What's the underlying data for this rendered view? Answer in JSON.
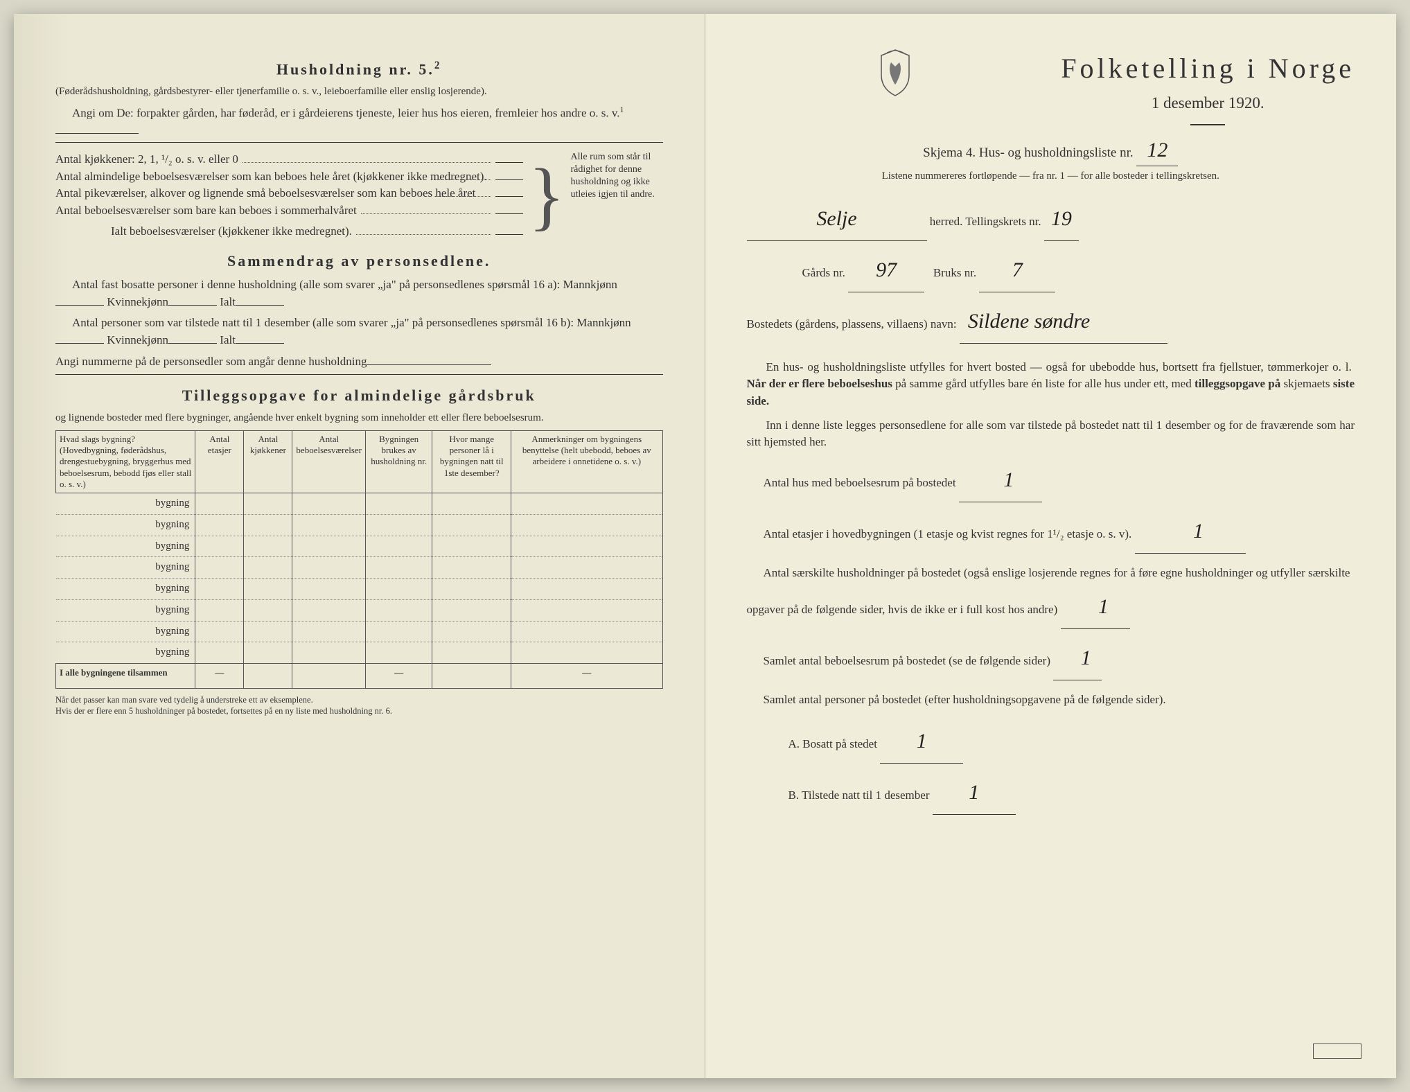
{
  "left": {
    "h5_title": "Husholdning nr. 5.",
    "h5_sup": "2",
    "h5_sub": "(Føderådshusholdning, gårdsbestyrer- eller tjenerfamilie o. s. v., leieboerfamilie eller enslig losjerende).",
    "h5_intro": "Angi om De:  forpakter gården, har føderåd, er i gårdeierens tjeneste, leier hus hos eieren, fremleier hos andre o. s. v.",
    "h5_intro_sup": "1",
    "rooms": {
      "kjokken": "Antal kjøkkener: 2, 1, ¹/₂ o. s. v. eller 0",
      "alm": "Antal almindelige beboelsesværelser som kan beboes hele året (kjøkkener ikke medregnet).",
      "pike": "Antal pikeværelser, alkover og lignende små beboelsesværelser som kan beboes hele året",
      "sommer": "Antal beboelsesværelser som bare kan beboes i sommerhalvåret",
      "ialt": "Ialt beboelsesværelser  (kjøkkener ikke medregnet).",
      "brace_text": "Alle rum som står til rådighet for denne husholdning og ikke utleies igjen til andre."
    },
    "samm_title": "Sammendrag av personsedlene.",
    "samm_l1a": "Antal fast bosatte personer i denne husholdning (alle som svarer „ja\" på personsedlenes spørsmål 16 a): Mannkjønn",
    "samm_l1b": "Kvinnekjønn",
    "samm_l1c": "Ialt",
    "samm_l2a": "Antal personer som var tilstede natt til 1 desember (alle som svarer „ja\" på personsedlenes spørsmål 16 b): Mannkjønn",
    "samm_l3": "Angi nummerne på de personsedler som angår denne husholdning",
    "till_title": "Tilleggsopgave for almindelige gårdsbruk",
    "till_sub": "og lignende bosteder med flere bygninger, angående hver enkelt bygning som inneholder ett eller flere beboelsesrum.",
    "table": {
      "h1": "Hvad slags bygning?\n(Hovedbygning, føderådshus, drengestuebygning, bryggerhus med beboelsesrum, bebodd fjøs eller stall o. s. v.)",
      "h2": "Antal etasjer",
      "h3": "Antal kjøkkener",
      "h4": "Antal beboelsesværelser",
      "h5": "Bygningen brukes av husholdning nr.",
      "h6": "Hvor mange personer lå i bygningen natt til 1ste desember?",
      "h7": "Anmerkninger om bygningens benyttelse (helt ubebodd, beboes av arbeidere i onnetidene o. s. v.)",
      "rowlabel": "bygning",
      "totallabel": "I alle bygningene tilsammen"
    },
    "foot1": "Når det passer kan man svare ved tydelig å understreke ett av eksemplene.",
    "foot2": "Hvis der er flere enn 5 husholdninger på bostedet, fortsettes på en ny liste med husholdning nr. 6."
  },
  "right": {
    "title": "Folketelling i Norge",
    "date": "1 desember 1920.",
    "skjema": "Skjema 4.  Hus- og husholdningsliste nr.",
    "skjema_val": "12",
    "listene": "Listene nummereres fortløpende — fra nr. 1 — for alle bosteder i tellingskretsen.",
    "herred_label": "herred.   Tellingskrets nr.",
    "herred_val": "Selje",
    "krets_val": "19",
    "gard_label": "Gårds nr.",
    "gard_val": "97",
    "bruks_label": "Bruks nr.",
    "bruks_val": "7",
    "bostednavn_label": "Bostedets (gårdens, plassens, villaens) navn:",
    "bostednavn_val": "Sildene  søndre",
    "para1": "En hus- og husholdningsliste utfylles for hvert bosted — også for ubebodde hus, bortsett fra fjellstuer, tømmerkojer o. l.  Når der er flere beboelseshus på samme gård utfylles bare én liste for alle hus under ett, med tilleggsopgave på skjemaets siste side.",
    "para2": "Inn i denne liste legges personsedlene for alle som var tilstede på bostedet natt til 1 desember og for de fraværende som har sitt hjemsted her.",
    "q1": "Antal hus med beboelsesrum på bostedet",
    "q1_val": "1",
    "q2a": "Antal etasjer i hovedbygningen (1 etasje og kvist regnes for 1¹/₂ etasje o. s. v).",
    "q2_val": "1",
    "q3": "Antal særskilte husholdninger på bostedet (også enslige losjerende regnes for å føre egne husholdninger og utfyller særskilte opgaver på de følgende sider, hvis de ikke er i full kost hos andre)",
    "q3_val": "1",
    "q4": "Samlet antal beboelsesrum på bostedet (se de følgende sider)",
    "q4_val": "1",
    "q5": "Samlet antal personer på bostedet (efter husholdningsopgavene på de følgende sider).",
    "qA": "A.  Bosatt på stedet",
    "qA_val": "1",
    "qB": "B.  Tilstede natt til 1 desember",
    "qB_val": "1"
  }
}
